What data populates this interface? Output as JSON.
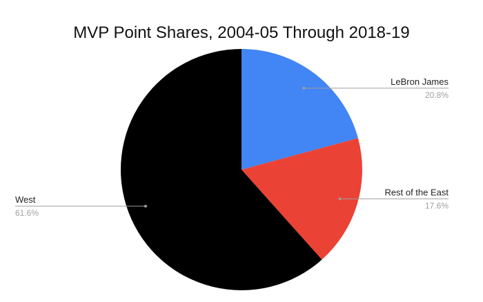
{
  "chart_data": {
    "type": "pie",
    "title": "MVP Point Shares, 2004-05 Through 2018-19",
    "legend": "none",
    "slices": [
      {
        "label": "LeBron James",
        "value": 20.8,
        "display": "20.8%",
        "color": "#4285F4"
      },
      {
        "label": "Rest of the East",
        "value": 17.6,
        "display": "17.6%",
        "color": "#EA4335"
      },
      {
        "label": "West",
        "value": 61.6,
        "display": "61.6%",
        "color": "#000000"
      }
    ]
  }
}
